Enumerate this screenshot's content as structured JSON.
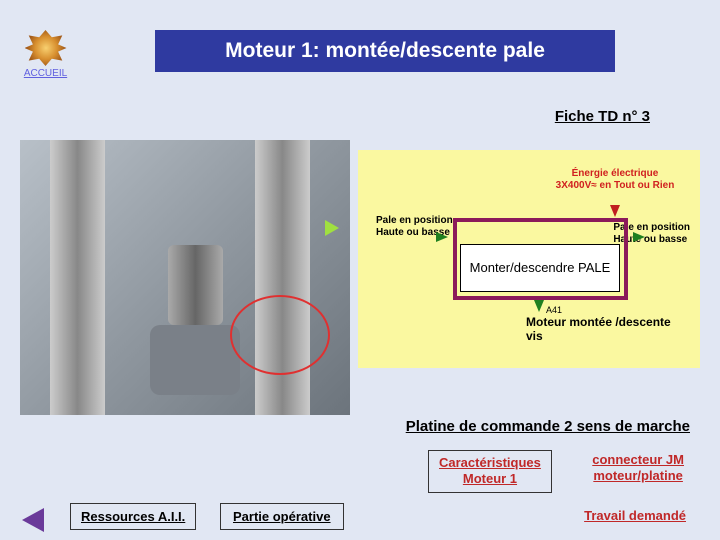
{
  "accueil": {
    "label": "ACCUEIL"
  },
  "title": "Moteur 1: montée/descente pale",
  "fiche": "Fiche TD n° 3",
  "diagram": {
    "energie": "Énergie électrique 3X400V≈ en Tout ou Rien",
    "pale_left_l1": "Pale en position",
    "pale_left_l2": "Haute ou basse",
    "pale_right_l1": "Pale en position",
    "pale_right_l2": "Haute ou basse",
    "box_text": "Monter/descendre PALE",
    "a41": "A41",
    "moteur_l1": "Moteur montée /descente",
    "moteur_l2": "vis",
    "colors": {
      "panel_bg": "#faf8a0",
      "box_border": "#8b1a5a",
      "energie_color": "#d02020"
    }
  },
  "links": {
    "platine": "Platine de commande 2 sens de marche",
    "caract_l1": "Caractéristiques",
    "caract_l2": "Moteur 1",
    "connecteur_l1": "connecteur JM",
    "connecteur_l2": "moteur/platine",
    "ressources": "Ressources A.I.I.",
    "partie": "Partie opérative",
    "travail": "Travail demandé"
  }
}
